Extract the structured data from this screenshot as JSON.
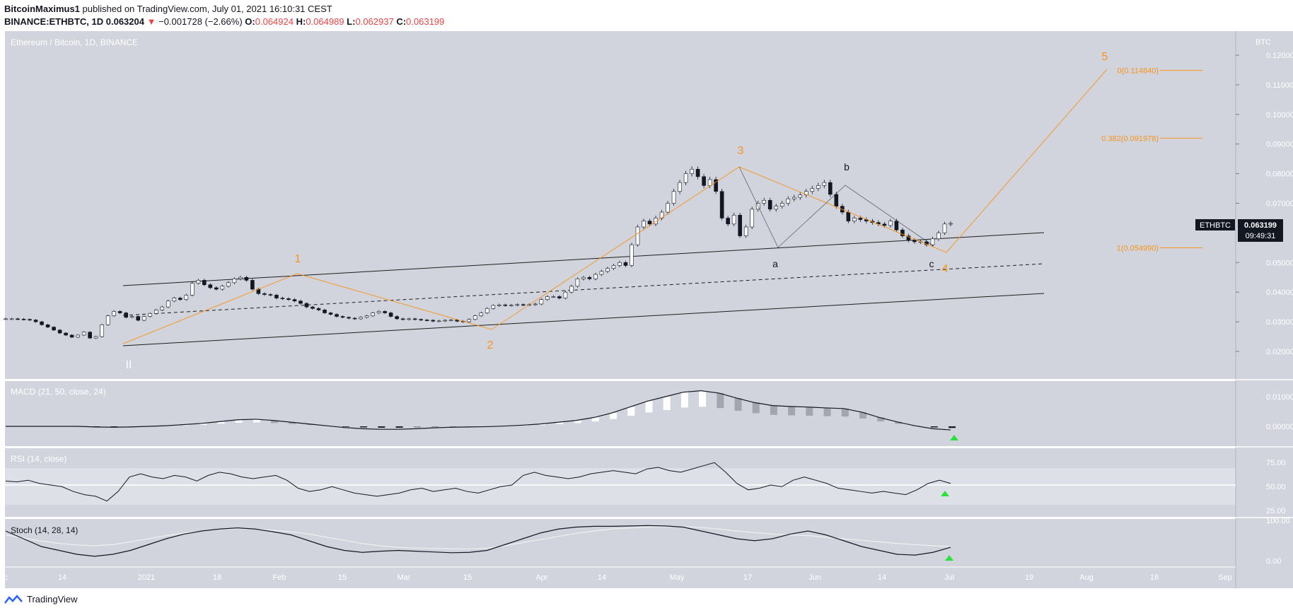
{
  "header": {
    "author": "BitcoinMaximus1",
    "published": "published on TradingView.com, July 01, 2021 16:10:31 CEST",
    "symbol": "BINANCE:ETHBTC, 1D",
    "last": "0.063204",
    "change_arrow": "▼",
    "change": "−0.001728 (−2.66%)",
    "o_label": "O:",
    "o": "0.064924",
    "h_label": "H:",
    "h": "0.064989",
    "l_label": "L:",
    "l": "0.062937",
    "c_label": "C:",
    "c": "0.063199"
  },
  "pane_title": "Ethereum / Bitcoin, 1D, BINANCE",
  "axis_currency": "BTC",
  "price_tag": {
    "symbol": "ETHBTC",
    "price": "0.063199",
    "countdown": "09:49:31"
  },
  "indicators": {
    "macd": "MACD (21, 50, close, 24)",
    "rsi": "RSI (14, close)",
    "stoch": "Stoch (14, 28, 14)"
  },
  "footer": {
    "brand": "TradingView"
  },
  "colors": {
    "orange": "#f7931a",
    "background": "#d1d4dc",
    "green": "#29e33b"
  },
  "chart_data": {
    "type": "candlestick",
    "symbol": "ETHBTC",
    "y_ticks": [
      {
        "v": 0.12,
        "label": "0.120000"
      },
      {
        "v": 0.11,
        "label": "0.110000"
      },
      {
        "v": 0.1,
        "label": "0.100000"
      },
      {
        "v": 0.09,
        "label": "0.090000"
      },
      {
        "v": 0.08,
        "label": "0.080000"
      },
      {
        "v": 0.07,
        "label": "0.070000"
      },
      {
        "v": 0.05,
        "label": "0.050000"
      },
      {
        "v": 0.04,
        "label": "0.040000"
      },
      {
        "v": 0.03,
        "label": "0.030000"
      },
      {
        "v": 0.02,
        "label": "0.020000"
      }
    ],
    "x_ticks": [
      "c",
      "14",
      "2021",
      "18",
      "Feb",
      "15",
      "Mar",
      "15",
      "Apr",
      "14",
      "May",
      "17",
      "Jun",
      "14",
      "Jul",
      "19",
      "Aug",
      "16",
      "Sep"
    ],
    "fib_levels": [
      {
        "label": "0(0.114840)",
        "v": 0.11484
      },
      {
        "label": "0.382(0.091978)",
        "v": 0.091978
      },
      {
        "label": "1(0.054990)",
        "v": 0.05499
      }
    ],
    "wave_labels": {
      "orange": [
        "1",
        "2",
        "3",
        "4",
        "5"
      ],
      "black": [
        "a",
        "b",
        "c"
      ],
      "white": "II"
    },
    "price_series": [
      0.031,
      0.031,
      0.0309,
      0.0308,
      0.0306,
      0.03,
      0.029,
      0.0282,
      0.0272,
      0.0262,
      0.0255,
      0.0248,
      0.0255,
      0.0265,
      0.0245,
      0.025,
      0.029,
      0.032,
      0.0335,
      0.033,
      0.0315,
      0.0318,
      0.0305,
      0.0318,
      0.0328,
      0.034,
      0.035,
      0.037,
      0.038,
      0.0375,
      0.039,
      0.043,
      0.044,
      0.0425,
      0.0415,
      0.041,
      0.042,
      0.0432,
      0.0445,
      0.045,
      0.044,
      0.041,
      0.0395,
      0.0392,
      0.039,
      0.038,
      0.0378,
      0.0375,
      0.037,
      0.0362,
      0.035,
      0.0345,
      0.034,
      0.033,
      0.0325,
      0.0318,
      0.0315,
      0.0312,
      0.031,
      0.0315,
      0.032,
      0.033,
      0.0335,
      0.033,
      0.0318,
      0.031,
      0.0308,
      0.031,
      0.0308,
      0.0306,
      0.0305,
      0.0302,
      0.0303,
      0.0305,
      0.0306,
      0.0302,
      0.03,
      0.0308,
      0.032,
      0.033,
      0.0345,
      0.0355,
      0.0357,
      0.0355,
      0.0356,
      0.0358,
      0.0357,
      0.0358,
      0.036,
      0.0375,
      0.0385,
      0.0385,
      0.038,
      0.04,
      0.042,
      0.0445,
      0.045,
      0.0445,
      0.046,
      0.047,
      0.048,
      0.049,
      0.05,
      0.049,
      0.056,
      0.062,
      0.064,
      0.063,
      0.065,
      0.067,
      0.07,
      0.074,
      0.077,
      0.08,
      0.0815,
      0.079,
      0.076,
      0.078,
      0.074,
      0.065,
      0.063,
      0.066,
      0.059,
      0.062,
      0.068,
      0.07,
      0.071,
      0.068,
      0.069,
      0.07,
      0.0715,
      0.072,
      0.0728,
      0.074,
      0.075,
      0.076,
      0.077,
      0.073,
      0.069,
      0.067,
      0.064,
      0.065,
      0.0645,
      0.064,
      0.0635,
      0.063,
      0.0625,
      0.064,
      0.061,
      0.059,
      0.0575,
      0.057,
      0.057,
      0.056,
      0.058,
      0.06,
      0.063,
      0.0632
    ],
    "macd_series": [
      0.0,
      0.0,
      0.0,
      0.0,
      0.0,
      -0.0002,
      -0.0003,
      -0.0002,
      0.0,
      0.0002,
      0.0006,
      0.001,
      0.0016,
      0.0022,
      0.0024,
      0.002,
      0.0014,
      0.0008,
      0.0002,
      -0.0004,
      -0.0008,
      -0.001,
      -0.001,
      -0.0008,
      -0.0005,
      -0.0003,
      -0.0002,
      -0.0001,
      0.0001,
      0.0004,
      0.0008,
      0.0014,
      0.002,
      0.003,
      0.0045,
      0.0065,
      0.0085,
      0.01,
      0.0115,
      0.012,
      0.0112,
      0.0095,
      0.008,
      0.007,
      0.0067,
      0.0065,
      0.0062,
      0.006,
      0.0048,
      0.003,
      0.0015,
      0.0002,
      -0.0008,
      -0.0012
    ],
    "rsi_series": [
      55,
      54,
      56,
      52,
      50,
      48,
      42,
      38,
      36,
      30,
      42,
      60,
      64,
      60,
      58,
      62,
      60,
      55,
      62,
      66,
      64,
      60,
      58,
      60,
      62,
      56,
      46,
      42,
      44,
      48,
      44,
      40,
      38,
      36,
      38,
      40,
      44,
      46,
      42,
      44,
      46,
      42,
      40,
      44,
      48,
      50,
      62,
      66,
      62,
      60,
      58,
      60,
      64,
      66,
      68,
      66,
      64,
      70,
      72,
      68,
      66,
      70,
      74,
      78,
      66,
      52,
      44,
      46,
      50,
      48,
      56,
      60,
      56,
      52,
      46,
      44,
      42,
      40,
      42,
      40,
      38,
      44,
      52,
      56,
      52
    ],
    "stoch_k": [
      80,
      60,
      40,
      30,
      20,
      15,
      20,
      30,
      45,
      60,
      72,
      80,
      85,
      88,
      85,
      78,
      70,
      55,
      40,
      30,
      25,
      28,
      30,
      28,
      26,
      24,
      25,
      30,
      45,
      60,
      75,
      85,
      90,
      92,
      92,
      93,
      94,
      93,
      90,
      80,
      70,
      60,
      55,
      60,
      72,
      80,
      70,
      55,
      40,
      30,
      20,
      18,
      25,
      38
    ],
    "stoch_d": [
      70,
      62,
      54,
      48,
      44,
      42,
      45,
      52,
      60,
      68,
      75,
      80,
      84,
      86,
      85,
      82,
      78,
      72,
      64,
      56,
      48,
      42,
      38,
      36,
      35,
      34,
      34,
      36,
      42,
      50,
      58,
      66,
      74,
      80,
      85,
      88,
      90,
      91,
      91,
      89,
      85,
      80,
      76,
      72,
      70,
      68,
      64,
      60,
      56,
      52,
      48,
      45,
      42,
      40
    ]
  }
}
